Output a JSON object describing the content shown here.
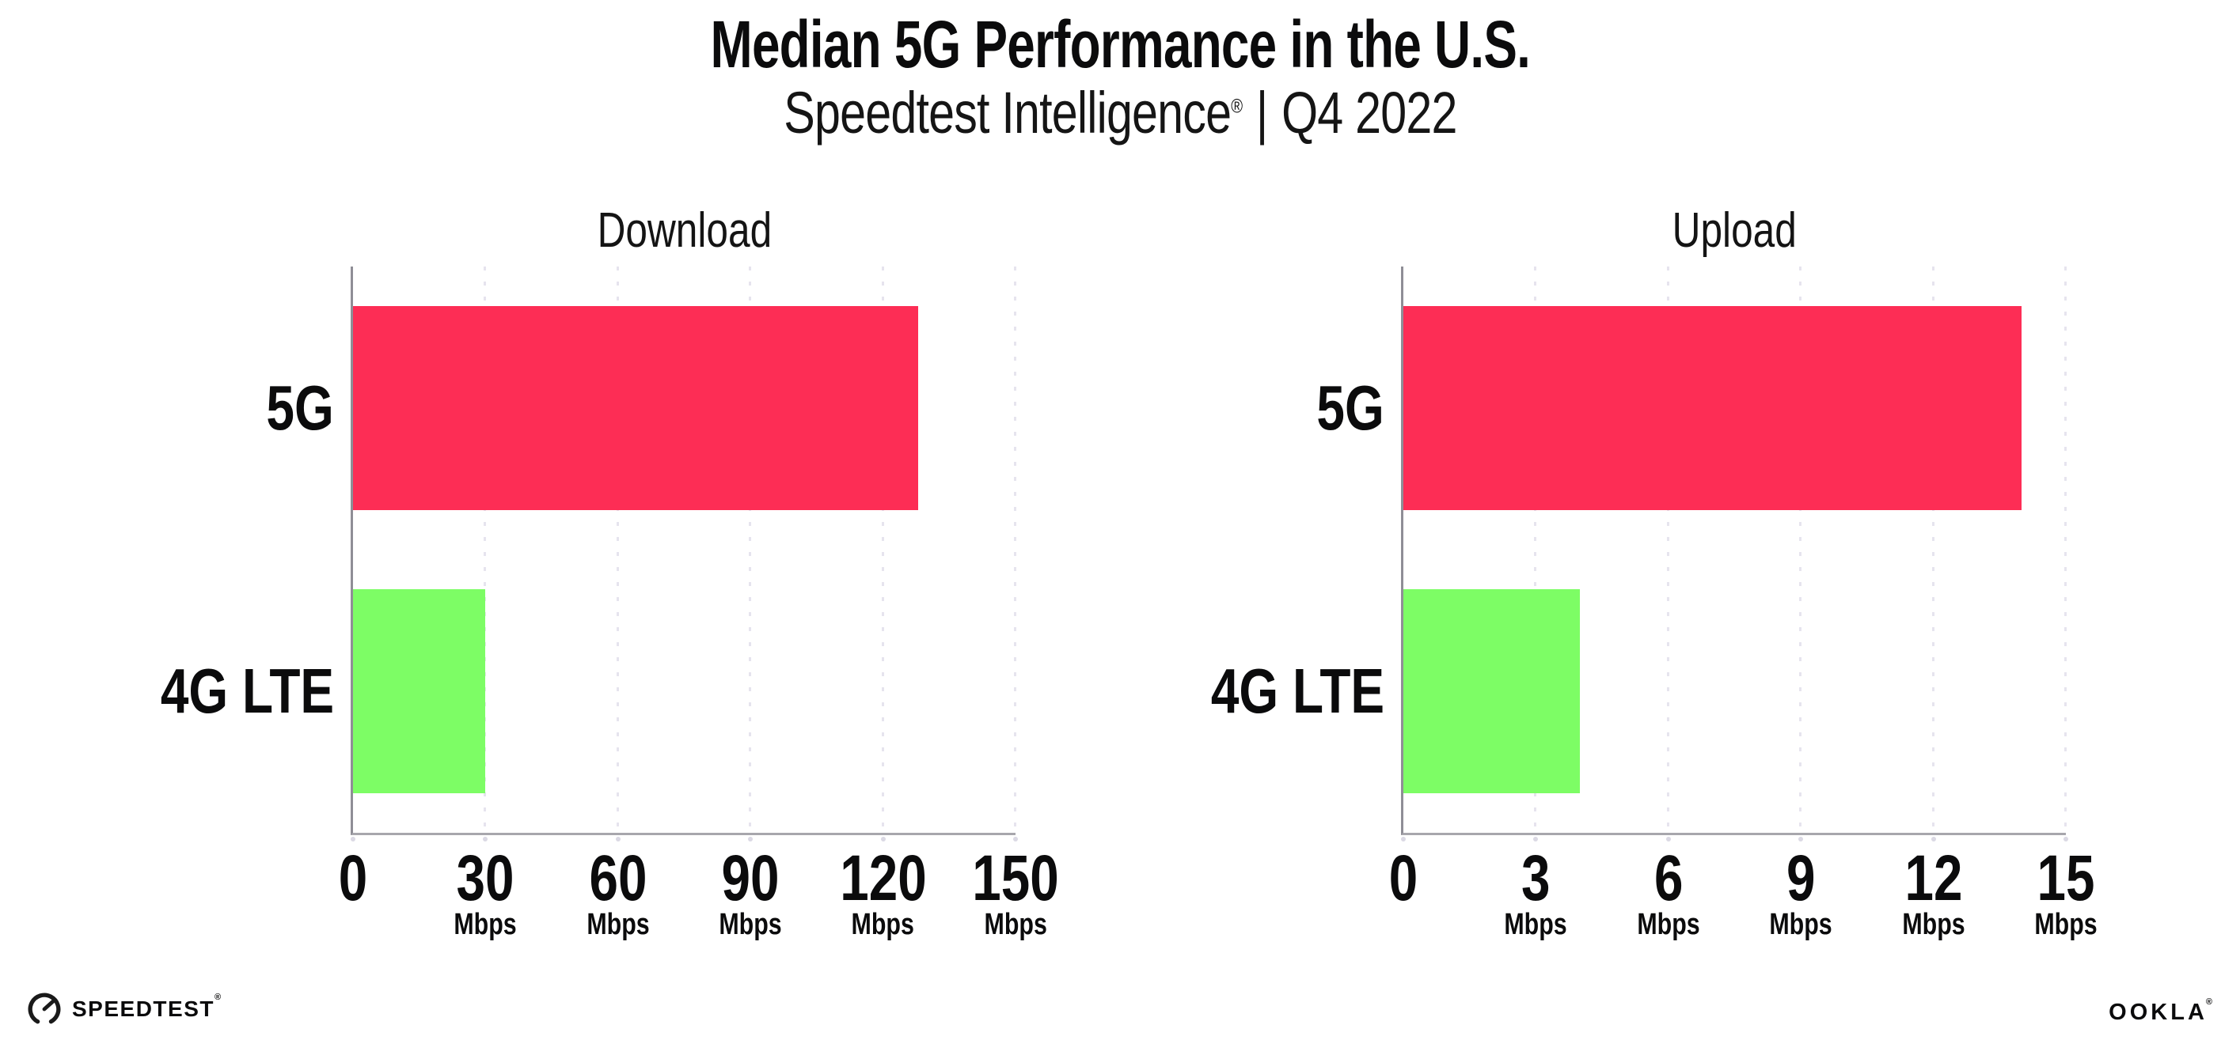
{
  "header": {
    "title": "Median 5G Performance in the U.S.",
    "subtitle": {
      "brand": "Speedtest Intelligence",
      "registered_mark": "®",
      "separator": "|",
      "period": "Q4 2022"
    }
  },
  "chart_data": [
    {
      "type": "bar",
      "orientation": "horizontal",
      "title": "Download",
      "categories": [
        "5G",
        "4G LTE"
      ],
      "values": [
        128,
        30
      ],
      "unit": "Mbps",
      "xlim": [
        0,
        150
      ],
      "xticks": [
        0,
        30,
        60,
        90,
        120,
        150
      ],
      "bar_colors": [
        "#fd2d55",
        "#7dfd65"
      ],
      "grid": "vertical-dotted",
      "show_unit_on_zero_tick": false
    },
    {
      "type": "bar",
      "orientation": "horizontal",
      "title": "Upload",
      "categories": [
        "5G",
        "4G LTE"
      ],
      "values": [
        14,
        4
      ],
      "unit": "Mbps",
      "xlim": [
        0,
        15
      ],
      "xticks": [
        0,
        3,
        6,
        9,
        12,
        15
      ],
      "bar_colors": [
        "#fd2d55",
        "#7dfd65"
      ],
      "grid": "vertical-dotted",
      "show_unit_on_zero_tick": false
    }
  ],
  "footer": {
    "speedtest": {
      "icon": "speedtest-gauge-icon",
      "text": "SPEEDTEST",
      "mark": "®"
    },
    "ookla": {
      "text": "OOKLA",
      "mark": "®"
    }
  },
  "colors": {
    "bar_5g": "#fd2d55",
    "bar_4g_lte": "#7dfd65",
    "y_axis": "#8f8e96",
    "x_axis": "#a7a6ac",
    "gridline": "#e6e4ee",
    "text": "#0b0b0c"
  }
}
